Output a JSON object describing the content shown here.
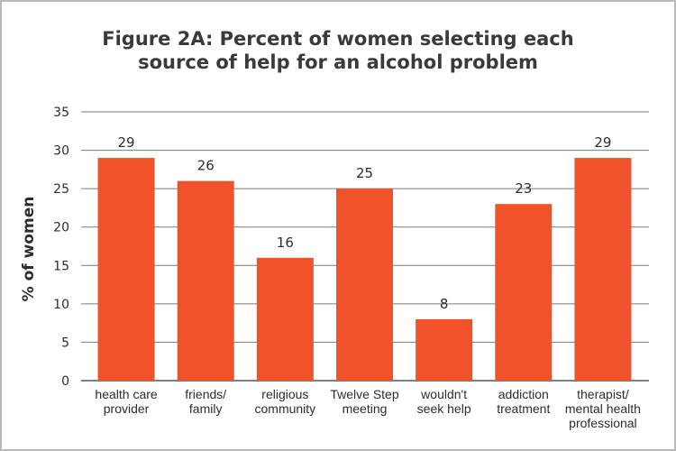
{
  "chart_data": {
    "type": "bar",
    "title_lines": [
      "Figure 2A: Percent of women selecting each",
      "source of help for an alcohol problem"
    ],
    "ylabel": "% of women",
    "xlabel": "",
    "ylim": [
      0,
      35
    ],
    "yticks": [
      0,
      5,
      10,
      15,
      20,
      25,
      30,
      35
    ],
    "grid": true,
    "bar_color": "#f0532a",
    "categories": [
      [
        "health care",
        "provider"
      ],
      [
        "friends/",
        "family"
      ],
      [
        "religious",
        "community"
      ],
      [
        "Twelve Step",
        "meeting"
      ],
      [
        "wouldn't",
        "seek help"
      ],
      [
        "addiction",
        "treatment"
      ],
      [
        "therapist/",
        "mental health",
        "professional"
      ]
    ],
    "values": [
      29,
      26,
      16,
      25,
      8,
      23,
      29
    ],
    "value_labels": [
      "29",
      "26",
      "16",
      "25",
      "8",
      "23",
      "29"
    ]
  }
}
